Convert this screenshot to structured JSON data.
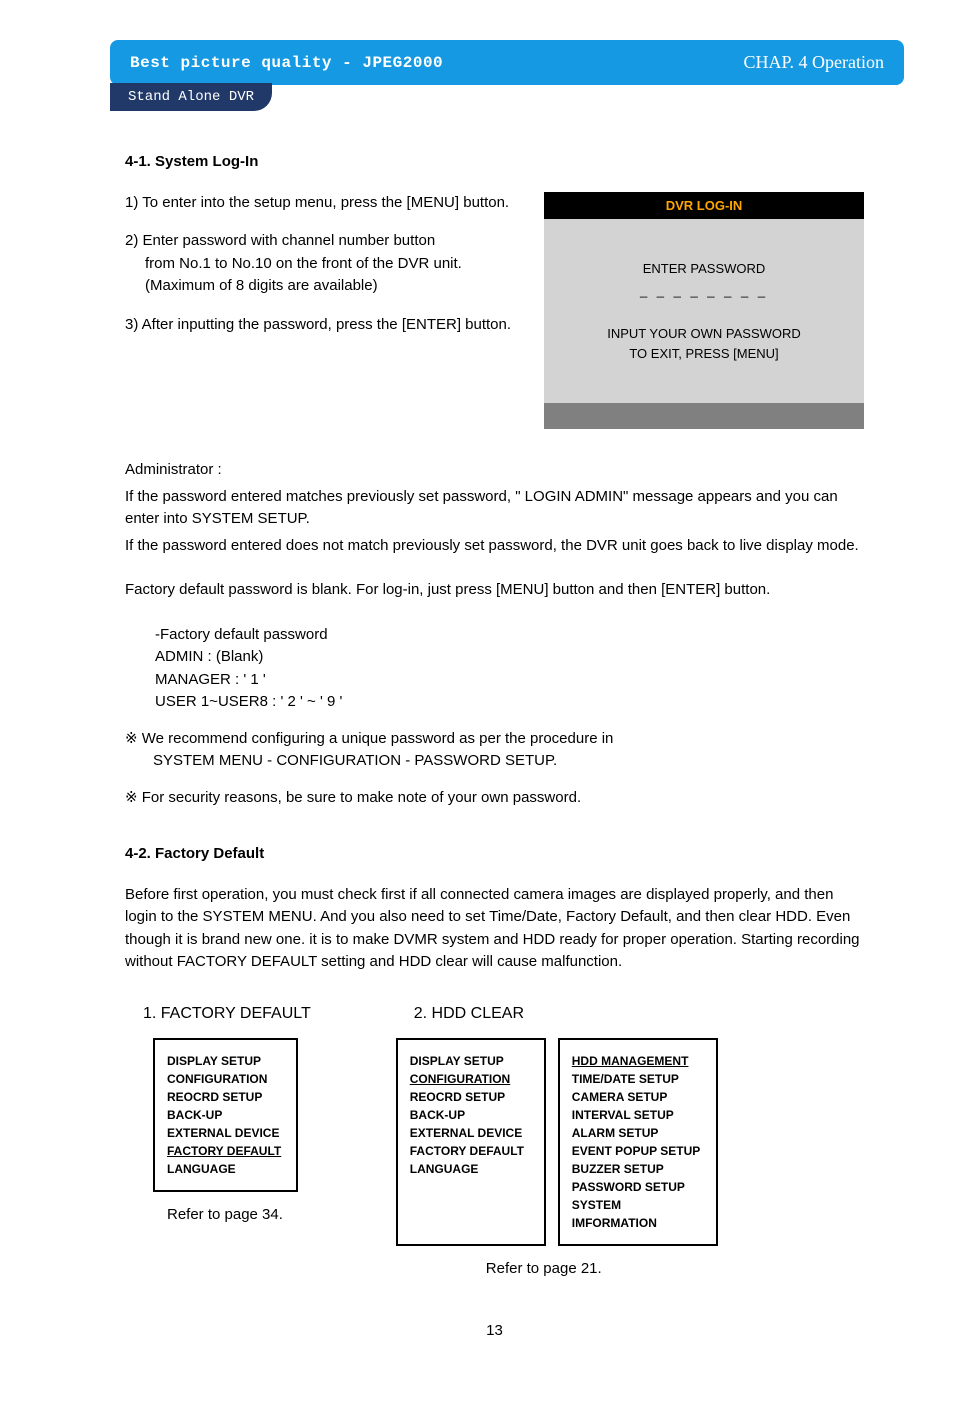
{
  "colors": {
    "header_bg": "#1599e2",
    "subtab_bg": "#203968",
    "login_title_bg": "#000000",
    "login_title_fg": "#ffa500",
    "login_body_bg": "#d3d3d3",
    "login_footer_bg": "#808080",
    "text": "#000000",
    "page_bg": "#ffffff"
  },
  "header": {
    "left": "Best picture quality - JPEG2000",
    "right": "CHAP. 4   Operation",
    "subtab": "Stand Alone DVR"
  },
  "section1": {
    "title": "4-1. System Log-In",
    "instr1": "1) To enter into the setup menu, press the [MENU] button.",
    "instr2a": "2) Enter password with channel number button",
    "instr2b": "from No.1 to No.10 on the front of the DVR unit.",
    "instr2c": "(Maximum of  8 digits are available)",
    "instr3": "3) After inputting the password, press the [ENTER] button."
  },
  "login_panel": {
    "title": "DVR  LOG-IN",
    "enter_password": "ENTER PASSWORD",
    "dashes": "_ _ _ _ _ _ _ _",
    "line1": "INPUT YOUR OWN PASSWORD",
    "line2": "TO EXIT, PRESS [MENU]"
  },
  "body": {
    "admin_label": "Administrator :",
    "p1": "If the password entered matches previously set password, \" LOGIN ADMIN\" message appears and you can enter into SYSTEM SETUP.",
    "p2": "If the password entered does not match previously set password, the DVR unit goes back to live display mode.",
    "p3": "Factory default password is blank. For log-in, just press [MENU] button and then [ENTER] button.",
    "pw_head": "-Factory default password",
    "pw_admin": "ADMIN : (Blank)",
    "pw_manager": "MANAGER : ' 1 '",
    "pw_user": "USER 1~USER8 : ' 2 ' ~ ' 9 '",
    "note1a": "※ We recommend configuring a unique password as per the procedure in",
    "note1b": "SYSTEM MENU - CONFIGURATION - PASSWORD SETUP.",
    "note2": "※ For security reasons, be sure to make note of your own password."
  },
  "section2": {
    "title": "4-2. Factory Default",
    "para": "Before first operation, you must check first if all connected camera images are displayed properly, and then login to the SYSTEM MENU. And you also need to set Time/Date, Factory Default, and then clear HDD. Even though it is brand new one. it is to make DVMR system and HDD ready for proper operation. Starting recording without FACTORY DEFAULT setting and HDD clear will cause malfunction."
  },
  "menus": {
    "col1_heading": "1. FACTORY DEFAULT",
    "col2_heading": "2. HDD CLEAR",
    "box1": {
      "items": [
        {
          "label": "DISPLAY SETUP",
          "u": false
        },
        {
          "label": "CONFIGURATION",
          "u": false
        },
        {
          "label": "REOCRD SETUP",
          "u": false
        },
        {
          "label": "BACK-UP",
          "u": false
        },
        {
          "label": "EXTERNAL DEVICE",
          "u": false
        },
        {
          "label": "FACTORY DEFAULT",
          "u": true
        },
        {
          "label": "LANGUAGE",
          "u": false
        }
      ]
    },
    "box2": {
      "items": [
        {
          "label": "DISPLAY SETUP",
          "u": false
        },
        {
          "label": "CONFIGURATION",
          "u": true
        },
        {
          "label": "REOCRD SETUP",
          "u": false
        },
        {
          "label": "BACK-UP",
          "u": false
        },
        {
          "label": "EXTERNAL DEVICE",
          "u": false
        },
        {
          "label": "FACTORY DEFAULT",
          "u": false
        },
        {
          "label": "LANGUAGE",
          "u": false
        }
      ]
    },
    "box3": {
      "items": [
        {
          "label": "HDD MANAGEMENT",
          "u": true
        },
        {
          "label": "TIME/DATE SETUP",
          "u": false
        },
        {
          "label": "CAMERA SETUP",
          "u": false
        },
        {
          "label": "INTERVAL SETUP",
          "u": false
        },
        {
          "label": "ALARM SETUP",
          "u": false
        },
        {
          "label": "EVENT POPUP SETUP",
          "u": false
        },
        {
          "label": "BUZZER SETUP",
          "u": false
        },
        {
          "label": "PASSWORD SETUP",
          "u": false
        },
        {
          "label": "SYSTEM IMFORMATION",
          "u": false
        }
      ]
    },
    "refer1": "Refer to page 34.",
    "refer2": "Refer to page 21."
  },
  "page_number": "13"
}
